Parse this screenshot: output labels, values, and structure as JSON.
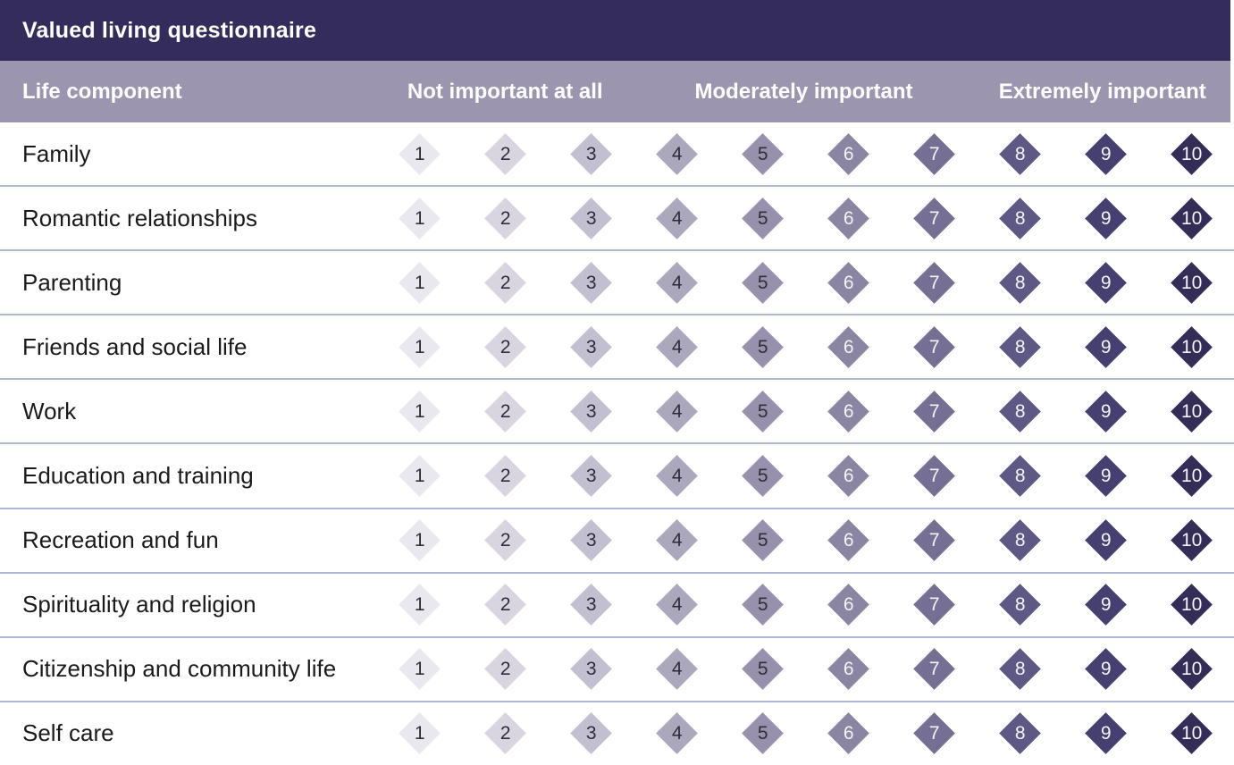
{
  "title_bar": {
    "title": "Valued living questionnaire"
  },
  "column_header": {
    "life_component": "Life component",
    "scale_headers": [
      "Not important at all",
      "Moderately important",
      "Extremely important"
    ]
  },
  "scale": {
    "min": 1,
    "max": 10,
    "points": [
      {
        "value": "1",
        "bg": "#e9e8ee",
        "text": "#2e2e38"
      },
      {
        "value": "2",
        "bg": "#d8d5e1",
        "text": "#2e2e38"
      },
      {
        "value": "3",
        "bg": "#c2bfd0",
        "text": "#2e2e38"
      },
      {
        "value": "4",
        "bg": "#aba7bd",
        "text": "#2e2e38"
      },
      {
        "value": "5",
        "bg": "#9791ad",
        "text": "#2e2e38"
      },
      {
        "value": "6",
        "bg": "#8a85a3",
        "text": "#f4f3f8"
      },
      {
        "value": "7",
        "bg": "#757093",
        "text": "#f4f3f8"
      },
      {
        "value": "8",
        "bg": "#5e5984",
        "text": "#f4f3f8"
      },
      {
        "value": "9",
        "bg": "#464070",
        "text": "#f4f3f8"
      },
      {
        "value": "10",
        "bg": "#332d58",
        "text": "#f4f3f8"
      }
    ]
  },
  "rows": [
    {
      "label": "Family"
    },
    {
      "label": "Romantic relationships"
    },
    {
      "label": "Parenting"
    },
    {
      "label": "Friends and social life"
    },
    {
      "label": "Work"
    },
    {
      "label": "Education and training"
    },
    {
      "label": "Recreation and fun"
    },
    {
      "label": "Spirituality and religion"
    },
    {
      "label": "Citizenship and community life"
    },
    {
      "label": "Self care"
    }
  ],
  "colors": {
    "title_bar_bg": "#342d5b",
    "header_bg": "#9b95af",
    "divider": "#aeb7d6",
    "row_text": "#1a1a1a"
  }
}
